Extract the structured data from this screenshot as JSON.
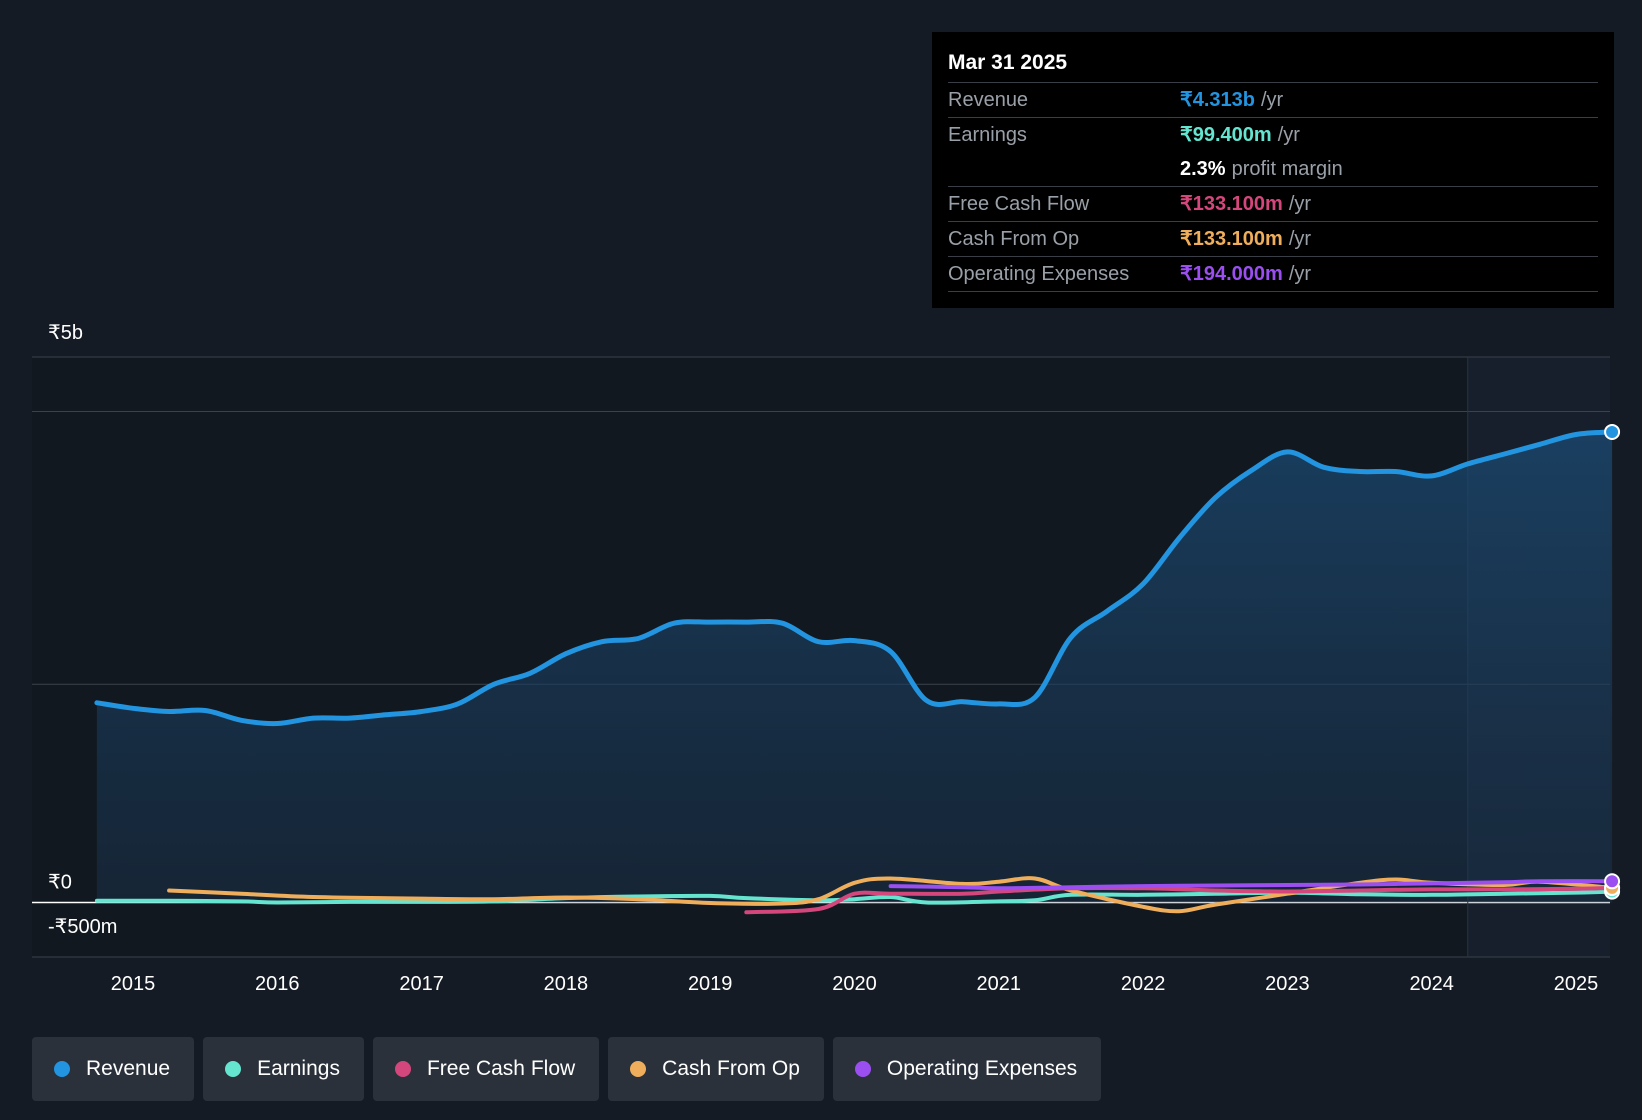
{
  "tooltip": {
    "date": "Mar 31 2025",
    "rows": [
      {
        "label": "Revenue",
        "value": "₹4.313b",
        "unit": "/yr",
        "color": "#2394df"
      },
      {
        "label": "Earnings",
        "value": "₹99.400m",
        "unit": "/yr",
        "color": "#65e4d0"
      },
      {
        "label": "",
        "value": "2.3%",
        "unit": "profit margin",
        "color": "#ffffff"
      },
      {
        "label": "Free Cash Flow",
        "value": "₹133.100m",
        "unit": "/yr",
        "color": "#d3477c"
      },
      {
        "label": "Cash From Op",
        "value": "₹133.100m",
        "unit": "/yr",
        "color": "#efae5b"
      },
      {
        "label": "Operating Expenses",
        "value": "₹194.000m",
        "unit": "/yr",
        "color": "#9b4ff0"
      }
    ]
  },
  "legend": [
    {
      "label": "Revenue",
      "color": "#2394df"
    },
    {
      "label": "Earnings",
      "color": "#65e4d0"
    },
    {
      "label": "Free Cash Flow",
      "color": "#d3477c"
    },
    {
      "label": "Cash From Op",
      "color": "#efae5b"
    },
    {
      "label": "Operating Expenses",
      "color": "#9b4ff0"
    }
  ],
  "chart_data": {
    "type": "line",
    "currency_unit": "INR millions",
    "ylim": [
      -500,
      5000
    ],
    "y_tick_labels": [
      {
        "value": 5000,
        "label": "₹5b"
      },
      {
        "value": 0,
        "label": "₹0"
      },
      {
        "value": -500,
        "label": "-₹500m"
      }
    ],
    "y_gridlines": [
      5000,
      4500,
      2000,
      0
    ],
    "xlim": [
      2014.33,
      2025.27
    ],
    "x_ticks": [
      2015,
      2016,
      2017,
      2018,
      2019,
      2020,
      2021,
      2022,
      2023,
      2024,
      2025
    ],
    "x_tick_labels": [
      "2015",
      "2016",
      "2017",
      "2018",
      "2019",
      "2020",
      "2021",
      "2022",
      "2023",
      "2024",
      "2025"
    ],
    "forecast_shade_start": 2024.25,
    "grid": true,
    "legend_position": "bottom",
    "series": [
      {
        "name": "Revenue",
        "color": "#2394df",
        "fill": true,
        "points": [
          [
            2014.75,
            1830
          ],
          [
            2015.0,
            1780
          ],
          [
            2015.25,
            1750
          ],
          [
            2015.5,
            1760
          ],
          [
            2015.75,
            1670
          ],
          [
            2016.0,
            1640
          ],
          [
            2016.25,
            1690
          ],
          [
            2016.5,
            1690
          ],
          [
            2016.75,
            1720
          ],
          [
            2017.0,
            1750
          ],
          [
            2017.25,
            1820
          ],
          [
            2017.5,
            2000
          ],
          [
            2017.75,
            2100
          ],
          [
            2018.0,
            2280
          ],
          [
            2018.25,
            2390
          ],
          [
            2018.5,
            2420
          ],
          [
            2018.75,
            2560
          ],
          [
            2019.0,
            2570
          ],
          [
            2019.25,
            2570
          ],
          [
            2019.5,
            2560
          ],
          [
            2019.75,
            2390
          ],
          [
            2020.0,
            2400
          ],
          [
            2020.25,
            2300
          ],
          [
            2020.5,
            1850
          ],
          [
            2020.75,
            1840
          ],
          [
            2021.0,
            1820
          ],
          [
            2021.25,
            1880
          ],
          [
            2021.5,
            2430
          ],
          [
            2021.75,
            2670
          ],
          [
            2022.0,
            2920
          ],
          [
            2022.25,
            3340
          ],
          [
            2022.5,
            3710
          ],
          [
            2022.75,
            3960
          ],
          [
            2023.0,
            4130
          ],
          [
            2023.25,
            3990
          ],
          [
            2023.5,
            3950
          ],
          [
            2023.75,
            3950
          ],
          [
            2024.0,
            3910
          ],
          [
            2024.25,
            4020
          ],
          [
            2024.5,
            4110
          ],
          [
            2024.75,
            4200
          ],
          [
            2025.0,
            4290
          ],
          [
            2025.25,
            4313
          ]
        ]
      },
      {
        "name": "Earnings",
        "color": "#65e4d0",
        "points": [
          [
            2014.75,
            15
          ],
          [
            2015.25,
            15
          ],
          [
            2015.75,
            10
          ],
          [
            2016.0,
            0
          ],
          [
            2016.5,
            5
          ],
          [
            2017.0,
            5
          ],
          [
            2017.5,
            10
          ],
          [
            2018.0,
            40
          ],
          [
            2018.5,
            55
          ],
          [
            2019.0,
            60
          ],
          [
            2019.25,
            40
          ],
          [
            2019.75,
            20
          ],
          [
            2020.0,
            30
          ],
          [
            2020.25,
            50
          ],
          [
            2020.5,
            0
          ],
          [
            2021.0,
            10
          ],
          [
            2021.25,
            20
          ],
          [
            2021.5,
            70
          ],
          [
            2022.0,
            70
          ],
          [
            2022.5,
            80
          ],
          [
            2023.0,
            90
          ],
          [
            2023.5,
            75
          ],
          [
            2024.0,
            70
          ],
          [
            2024.5,
            80
          ],
          [
            2025.0,
            90
          ],
          [
            2025.25,
            99.4
          ]
        ]
      },
      {
        "name": "Free Cash Flow",
        "color": "#d3477c",
        "points": [
          [
            2019.25,
            -90
          ],
          [
            2019.75,
            -60
          ],
          [
            2020.0,
            80
          ],
          [
            2020.25,
            80
          ],
          [
            2020.75,
            80
          ],
          [
            2021.0,
            100
          ],
          [
            2021.5,
            130
          ],
          [
            2022.0,
            130
          ],
          [
            2022.5,
            110
          ],
          [
            2023.0,
            100
          ],
          [
            2023.5,
            110
          ],
          [
            2024.0,
            120
          ],
          [
            2024.5,
            120
          ],
          [
            2025.0,
            125
          ],
          [
            2025.25,
            133.1
          ]
        ]
      },
      {
        "name": "Cash From Op",
        "color": "#efae5b",
        "points": [
          [
            2015.25,
            110
          ],
          [
            2015.75,
            80
          ],
          [
            2016.25,
            50
          ],
          [
            2017.0,
            35
          ],
          [
            2017.5,
            30
          ],
          [
            2018.0,
            45
          ],
          [
            2018.5,
            30
          ],
          [
            2019.0,
            -5
          ],
          [
            2019.5,
            -10
          ],
          [
            2019.75,
            30
          ],
          [
            2020.0,
            180
          ],
          [
            2020.25,
            220
          ],
          [
            2020.75,
            170
          ],
          [
            2021.0,
            190
          ],
          [
            2021.25,
            220
          ],
          [
            2021.5,
            110
          ],
          [
            2022.0,
            -40
          ],
          [
            2022.25,
            -80
          ],
          [
            2022.5,
            -20
          ],
          [
            2023.0,
            80
          ],
          [
            2023.5,
            180
          ],
          [
            2023.75,
            210
          ],
          [
            2024.0,
            180
          ],
          [
            2024.5,
            160
          ],
          [
            2024.75,
            190
          ],
          [
            2025.25,
            133.1
          ]
        ]
      },
      {
        "name": "Operating Expenses",
        "color": "#9b4ff0",
        "points": [
          [
            2020.25,
            150
          ],
          [
            2020.75,
            140
          ],
          [
            2021.0,
            130
          ],
          [
            2021.5,
            140
          ],
          [
            2022.0,
            150
          ],
          [
            2022.5,
            155
          ],
          [
            2023.0,
            160
          ],
          [
            2023.5,
            165
          ],
          [
            2024.0,
            175
          ],
          [
            2024.5,
            185
          ],
          [
            2024.75,
            195
          ],
          [
            2025.25,
            194
          ]
        ]
      }
    ]
  }
}
